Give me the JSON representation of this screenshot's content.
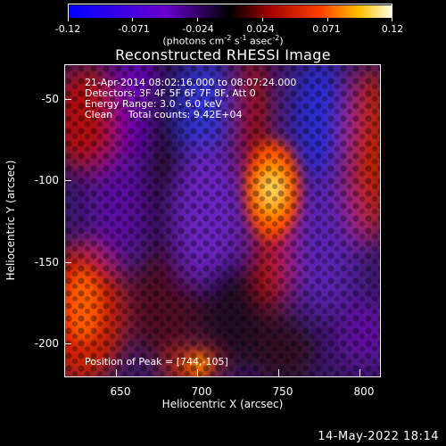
{
  "colorbar": {
    "ticks": [
      "-0.12",
      "-0.071",
      "-0.024",
      "0.024",
      "0.071",
      "0.12"
    ],
    "units_prefix": "(photons cm",
    "units_exp1": "-2",
    "units_mid1": " s",
    "units_exp2": "-1",
    "units_mid2": " asec",
    "units_exp3": "-2",
    "units_suffix": ")",
    "range": [
      -0.12,
      0.12
    ]
  },
  "title": "Reconstructed RHESSI Image",
  "info": {
    "time": "21-Apr-2014 08:02:16.000 to 08:07:24.000",
    "detectors": "Detectors: 3F 4F 5F 6F 7F 8F, Att 0",
    "energy": "Energy Range: 3.0 - 6.0 keV",
    "clean": "Clean     Total counts: 9.42E+04",
    "peak": "Position of Peak = [744,-105]"
  },
  "axes": {
    "xlabel": "Heliocentric X (arcsec)",
    "ylabel": "Heliocentric Y (arcsec)",
    "xticks": [
      "650",
      "700",
      "750",
      "800"
    ],
    "yticks": [
      "-50",
      "-100",
      "-150",
      "-200"
    ],
    "xlim": [
      618,
      812
    ],
    "ylim": [
      -222,
      -30
    ]
  },
  "footer": {
    "date": "14-May-2022 18:14"
  },
  "colors": {
    "background": "#000000",
    "text": "#ffffff"
  }
}
